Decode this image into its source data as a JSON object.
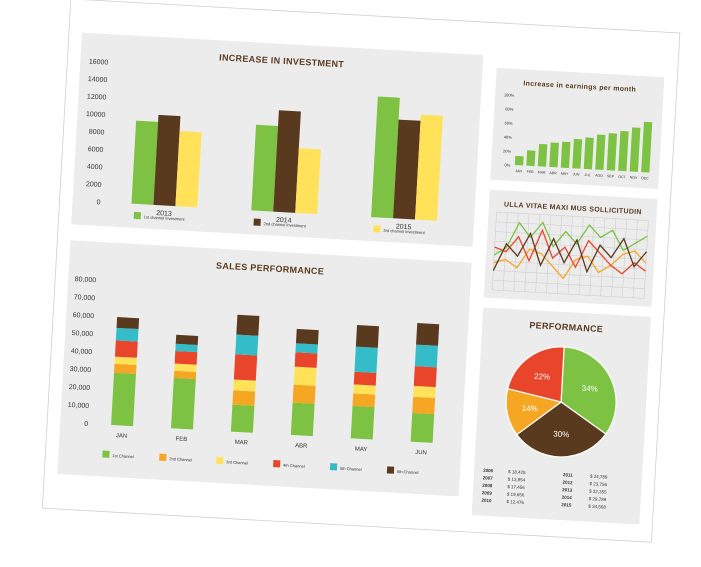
{
  "colors": {
    "green": "#7dc242",
    "brown": "#5a3a1e",
    "yellow": "#ffe25a",
    "orange": "#f5a623",
    "red": "#e8452b",
    "cyan": "#35bcc9",
    "panel": "#ececec",
    "sheet": "#ffffff",
    "gridline": "#cfcfcf"
  },
  "chart_data": [
    {
      "id": "investment",
      "type": "bar",
      "title": "INCREASE IN INVESTMENT",
      "categories": [
        "2013",
        "2014",
        "2015"
      ],
      "yticks": [
        "16000",
        "14000",
        "12000",
        "10000",
        "8000",
        "6000",
        "4000",
        "2000",
        "0"
      ],
      "ylim": [
        0,
        16000
      ],
      "series": [
        {
          "name": "1st channel investment",
          "values": [
            9500,
            9800,
            13800
          ]
        },
        {
          "name": "2nd channel investment",
          "values": [
            10300,
            11600,
            11300
          ]
        },
        {
          "name": "3rd channel investment",
          "values": [
            8600,
            7400,
            12000
          ]
        }
      ],
      "legend": "bottom"
    },
    {
      "id": "sales",
      "type": "bar",
      "stacked": true,
      "title": "SALES PERFORMANCE",
      "categories": [
        "JAN",
        "FEB",
        "MAR",
        "ABR",
        "MAY",
        "JUN"
      ],
      "yticks": [
        "80,000",
        "70,000",
        "60,000",
        "50,000",
        "40,000",
        "30,000",
        "20,000",
        "10,000",
        "0"
      ],
      "ylim": [
        0,
        80000
      ],
      "series": [
        {
          "name": "1st Channel",
          "values": [
            29000,
            28000,
            15000,
            18000,
            18000,
            16000
          ]
        },
        {
          "name": "2nd Channel",
          "values": [
            5000,
            4000,
            8000,
            10000,
            7000,
            9000
          ]
        },
        {
          "name": "3rd Channel",
          "values": [
            4000,
            4000,
            6000,
            10000,
            5000,
            6000
          ]
        },
        {
          "name": "4th Channel",
          "values": [
            9000,
            7000,
            14000,
            8000,
            7000,
            11000
          ]
        },
        {
          "name": "5th Channel",
          "values": [
            7000,
            4000,
            11000,
            5000,
            14000,
            12000
          ]
        },
        {
          "name": "6th Channel",
          "values": [
            6000,
            5000,
            11000,
            8000,
            12000,
            12000
          ]
        }
      ],
      "legend": "bottom"
    },
    {
      "id": "earnings",
      "type": "bar",
      "title": "Increase in earnings per month",
      "categories": [
        "JAN",
        "FEB",
        "MAR",
        "ABR",
        "MAY",
        "JUN",
        "JUL",
        "AGO",
        "SEP",
        "OCT",
        "NOV",
        "DEC"
      ],
      "yticks": [
        "100%",
        "80%",
        "60%",
        "40%",
        "20%",
        "0%"
      ],
      "ylim": [
        0,
        100
      ],
      "values": [
        13,
        22,
        32,
        35,
        37,
        42,
        45,
        50,
        53,
        57,
        63,
        72
      ]
    },
    {
      "id": "lines",
      "type": "line",
      "title": "ULLA VITAE MAXI MUS SOLLICITUDIN",
      "ylim": [
        0,
        100
      ],
      "x": [
        1,
        2,
        3,
        4,
        5,
        6,
        7,
        8,
        9,
        10,
        11,
        12,
        13,
        14
      ],
      "series": [
        {
          "color": "#7dc242",
          "values": [
            45,
            55,
            88,
            70,
            90,
            60,
            80,
            65,
            90,
            75,
            85,
            60,
            70,
            80
          ]
        },
        {
          "color": "#f5a623",
          "values": [
            35,
            40,
            30,
            55,
            50,
            35,
            20,
            45,
            50,
            30,
            40,
            55,
            60,
            45
          ]
        },
        {
          "color": "#e8452b",
          "values": [
            55,
            50,
            70,
            40,
            80,
            45,
            60,
            35,
            70,
            55,
            40,
            30,
            45,
            35
          ]
        },
        {
          "color": "#5a3a1e",
          "values": [
            25,
            60,
            45,
            75,
            35,
            70,
            40,
            70,
            30,
            65,
            50,
            75,
            40,
            60
          ]
        }
      ]
    },
    {
      "id": "performance",
      "type": "pie",
      "title": "PERFORMANCE",
      "slices": [
        {
          "label": "34%",
          "value": 34,
          "color": "#7dc242"
        },
        {
          "label": "30%",
          "value": 30,
          "color": "#5a3a1e"
        },
        {
          "label": "14%",
          "value": 14,
          "color": "#f5a623"
        },
        {
          "label": "22%",
          "value": 22,
          "color": "#e8452b"
        }
      ]
    }
  ],
  "performance_table": {
    "left": [
      {
        "year": "2006",
        "value": "$ 18,425"
      },
      {
        "year": "2007",
        "value": "$ 13,854"
      },
      {
        "year": "2008",
        "value": "$ 17,456"
      },
      {
        "year": "2009",
        "value": "$ 19,656"
      },
      {
        "year": "2010",
        "value": "$ 12,476"
      }
    ],
    "right": [
      {
        "year": "2011",
        "value": "$ 24,789"
      },
      {
        "year": "2012",
        "value": "$ 23,756"
      },
      {
        "year": "2013",
        "value": "$ 22,355"
      },
      {
        "year": "2014",
        "value": "$ 29,789"
      },
      {
        "year": "2015",
        "value": "$ 34,568"
      }
    ]
  }
}
